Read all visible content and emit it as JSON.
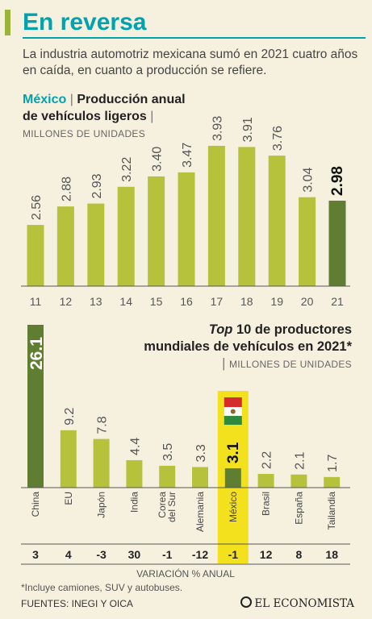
{
  "header": {
    "title": "En reversa",
    "subtitle": "La industria automotriz mexicana sumó en 2021 cuatro años en caída, en cuanto a producción se refiere."
  },
  "chart1_heading": {
    "country": "México",
    "title": "Producción anual de vehículos ligeros",
    "unit": "MILLONES DE UNIDADES"
  },
  "chart2_heading": {
    "title_italic": "Top",
    "title_rest": "10 de productores mundiales de vehículos en 2021*",
    "unit": "MILLONES DE UNIDADES"
  },
  "colors": {
    "bar": "#b6c23c",
    "highlight_bar": "#5f7e31",
    "highlight_box": "#f4e11e",
    "accent": "#00a3ad"
  },
  "chart_data": [
    {
      "type": "bar",
      "title": "Producción anual de vehículos ligeros",
      "ylabel": "MILLONES DE UNIDADES",
      "categories": [
        "11",
        "12",
        "13",
        "14",
        "15",
        "16",
        "17",
        "18",
        "19",
        "20",
        "21"
      ],
      "values": [
        2.56,
        2.88,
        2.93,
        3.22,
        3.4,
        3.47,
        3.93,
        3.91,
        3.76,
        3.04,
        2.98
      ],
      "value_labels": [
        "2.56",
        "2.88",
        "2.93",
        "3.22",
        "3.40",
        "3.47",
        "3.93",
        "3.91",
        "3.76",
        "3.04",
        "2.98"
      ],
      "highlight": "21",
      "ylim": [
        1.5,
        4.25
      ]
    },
    {
      "type": "bar",
      "title": "Top 10 de productores mundiales de vehículos en 2021*",
      "ylabel": "MILLONES DE UNIDADES",
      "categories": [
        "China",
        "EU",
        "Japón",
        "India",
        "Corea del Sur",
        "Alemania",
        "México",
        "Brasil",
        "España",
        "Tailandia"
      ],
      "values": [
        26.1,
        9.2,
        7.8,
        4.4,
        3.5,
        3.3,
        3.1,
        2.2,
        2.1,
        1.7
      ],
      "value_labels": [
        "26.1",
        "9.2",
        "7.8",
        "4.4",
        "3.5",
        "3.3",
        "3.1",
        "2.2",
        "2.1",
        "1.7"
      ],
      "highlight": "México",
      "variation_label": "VARIACIÓN % ANUAL",
      "variation": [
        "3",
        "4",
        "-3",
        "30",
        "-1",
        "-12",
        "-1",
        "12",
        "8",
        "18"
      ]
    }
  ],
  "footer": {
    "note": "*Incluye camiones, SUV y autobuses.",
    "sources": "FUENTES: INEGI Y OICA",
    "logo": "EL ECONOMISTA"
  }
}
